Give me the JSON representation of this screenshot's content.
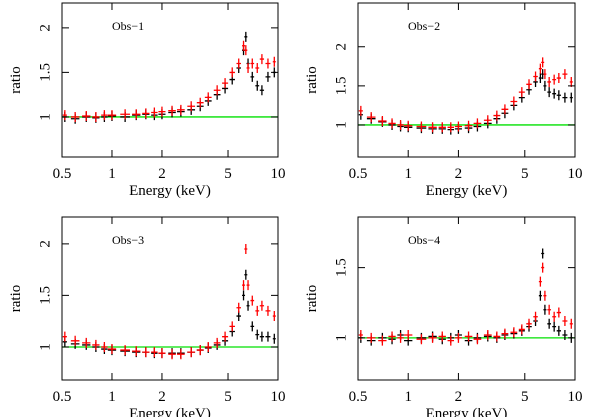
{
  "chart_data": [
    {
      "type": "scatter",
      "annotation": "Obs−1",
      "xlabel": "Energy (keV)",
      "ylabel": "ratio",
      "xscale": "log",
      "xlim": [
        0.5,
        10
      ],
      "xticks": [
        0.5,
        1,
        2,
        5,
        10
      ],
      "ylim": [
        0.55,
        2.28
      ],
      "yticks": [
        1,
        1.5,
        2
      ],
      "hline": {
        "value": 1,
        "color": "#00e000"
      },
      "x": [
        0.52,
        0.6,
        0.7,
        0.8,
        0.9,
        1.0,
        1.2,
        1.4,
        1.6,
        1.8,
        2.0,
        2.3,
        2.6,
        3.0,
        3.4,
        3.8,
        4.3,
        4.8,
        5.3,
        5.8,
        6.2,
        6.4,
        6.6,
        7.0,
        7.5,
        8.0,
        8.7,
        9.5
      ],
      "series": [
        {
          "color": "#000000",
          "values": [
            1.0,
            0.98,
            1.0,
            0.99,
            1.0,
            1.01,
            1.0,
            1.02,
            1.03,
            1.02,
            1.03,
            1.05,
            1.06,
            1.08,
            1.12,
            1.18,
            1.25,
            1.32,
            1.42,
            1.55,
            1.75,
            1.9,
            1.6,
            1.45,
            1.35,
            1.3,
            1.45,
            1.5
          ]
        },
        {
          "color": "#ff0000",
          "values": [
            1.02,
            1.0,
            1.01,
            1.0,
            1.02,
            1.02,
            1.03,
            1.03,
            1.04,
            1.05,
            1.06,
            1.07,
            1.08,
            1.12,
            1.16,
            1.22,
            1.3,
            1.38,
            1.5,
            1.6,
            1.8,
            1.75,
            1.55,
            1.6,
            1.55,
            1.65,
            1.6,
            1.62
          ]
        }
      ]
    },
    {
      "type": "scatter",
      "annotation": "Obs−2",
      "xlabel": "Energy (keV)",
      "ylabel": "ratio",
      "xscale": "log",
      "xlim": [
        0.5,
        10
      ],
      "xticks": [
        0.5,
        1,
        2,
        5,
        10
      ],
      "ylim": [
        0.59,
        2.56
      ],
      "yticks": [
        1,
        1.5,
        2
      ],
      "hline": {
        "value": 1,
        "color": "#00e000"
      },
      "x": [
        0.52,
        0.6,
        0.7,
        0.8,
        0.9,
        1.0,
        1.2,
        1.4,
        1.6,
        1.8,
        2.0,
        2.3,
        2.6,
        3.0,
        3.4,
        3.8,
        4.3,
        4.8,
        5.3,
        5.8,
        6.2,
        6.4,
        6.6,
        7.0,
        7.5,
        8.0,
        8.7,
        9.5
      ],
      "series": [
        {
          "color": "#000000",
          "values": [
            1.13,
            1.08,
            1.04,
            1.0,
            0.98,
            0.97,
            0.96,
            0.95,
            0.95,
            0.94,
            0.95,
            0.96,
            0.98,
            1.02,
            1.08,
            1.15,
            1.25,
            1.35,
            1.45,
            1.55,
            1.6,
            1.65,
            1.5,
            1.42,
            1.4,
            1.38,
            1.35,
            1.35
          ]
        },
        {
          "color": "#ff0000",
          "values": [
            1.18,
            1.1,
            1.05,
            1.02,
            1.0,
            0.99,
            0.98,
            0.97,
            0.97,
            0.97,
            0.98,
            0.99,
            1.02,
            1.06,
            1.12,
            1.2,
            1.3,
            1.42,
            1.52,
            1.62,
            1.72,
            1.8,
            1.65,
            1.55,
            1.58,
            1.6,
            1.65,
            1.55
          ]
        }
      ]
    },
    {
      "type": "scatter",
      "annotation": "Obs−3",
      "xlabel": "Energy (keV)",
      "ylabel": "ratio",
      "xscale": "log",
      "xlim": [
        0.5,
        10
      ],
      "xticks": [
        0.5,
        1,
        2,
        5,
        10
      ],
      "ylim": [
        0.68,
        2.26
      ],
      "yticks": [
        1,
        1.5,
        2
      ],
      "hline": {
        "value": 1,
        "color": "#00e000"
      },
      "x": [
        0.52,
        0.6,
        0.7,
        0.8,
        0.9,
        1.0,
        1.2,
        1.4,
        1.6,
        1.8,
        2.0,
        2.3,
        2.6,
        3.0,
        3.4,
        3.8,
        4.3,
        4.8,
        5.3,
        5.8,
        6.2,
        6.4,
        6.6,
        7.0,
        7.5,
        8.0,
        8.7,
        9.5
      ],
      "series": [
        {
          "color": "#000000",
          "values": [
            1.05,
            1.03,
            1.02,
            1.0,
            0.98,
            0.97,
            0.96,
            0.95,
            0.95,
            0.94,
            0.94,
            0.94,
            0.94,
            0.95,
            0.97,
            0.99,
            1.02,
            1.06,
            1.15,
            1.3,
            1.5,
            1.7,
            1.4,
            1.2,
            1.12,
            1.1,
            1.1,
            1.08
          ]
        },
        {
          "color": "#ff0000",
          "values": [
            1.1,
            1.06,
            1.04,
            1.02,
            1.0,
            0.98,
            0.97,
            0.96,
            0.95,
            0.95,
            0.94,
            0.93,
            0.93,
            0.95,
            0.97,
            1.0,
            1.04,
            1.1,
            1.2,
            1.38,
            1.6,
            1.95,
            1.6,
            1.45,
            1.35,
            1.4,
            1.35,
            1.3
          ]
        }
      ]
    },
    {
      "type": "scatter",
      "annotation": "Obs−4",
      "xlabel": "Energy (keV)",
      "ylabel": "ratio",
      "xscale": "log",
      "xlim": [
        0.5,
        10
      ],
      "xticks": [
        0.5,
        1,
        2,
        5,
        10
      ],
      "ylim": [
        0.7,
        1.86
      ],
      "yticks": [
        1,
        1.5
      ],
      "hline": {
        "value": 1,
        "color": "#00e000"
      },
      "x": [
        0.52,
        0.6,
        0.7,
        0.8,
        0.9,
        1.0,
        1.2,
        1.4,
        1.6,
        1.8,
        2.0,
        2.3,
        2.6,
        3.0,
        3.4,
        3.8,
        4.3,
        4.8,
        5.3,
        5.8,
        6.2,
        6.4,
        6.6,
        7.0,
        7.5,
        8.0,
        8.7,
        9.5
      ],
      "series": [
        {
          "color": "#000000",
          "values": [
            1.0,
            0.98,
            1.0,
            0.99,
            1.02,
            0.98,
            1.0,
            1.01,
            0.99,
            1.0,
            1.02,
            0.98,
            1.0,
            1.01,
            1.0,
            1.02,
            1.03,
            1.05,
            1.08,
            1.12,
            1.3,
            1.6,
            1.2,
            1.1,
            1.08,
            1.05,
            1.02,
            1.0
          ]
        },
        {
          "color": "#ff0000",
          "values": [
            1.02,
            1.0,
            0.98,
            1.01,
            1.0,
            1.02,
            0.99,
            1.0,
            1.01,
            0.98,
            1.0,
            1.01,
            0.99,
            1.02,
            1.01,
            1.03,
            1.04,
            1.06,
            1.1,
            1.15,
            1.4,
            1.5,
            1.3,
            1.2,
            1.15,
            1.18,
            1.12,
            1.1
          ]
        }
      ]
    }
  ]
}
